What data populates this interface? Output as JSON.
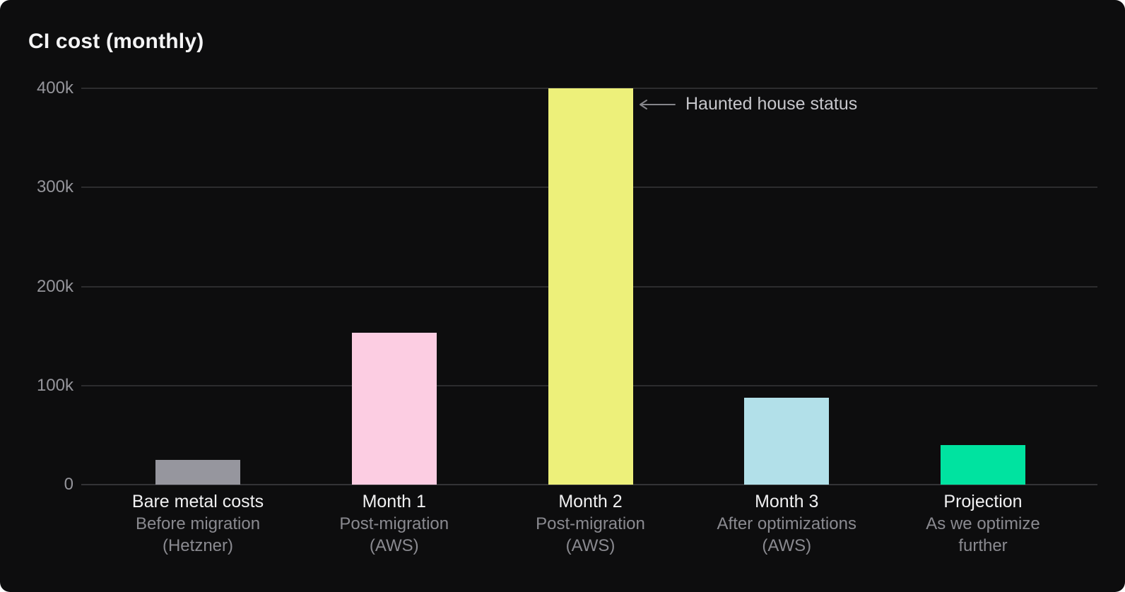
{
  "chart_data": {
    "type": "bar",
    "title": "CI cost (monthly)",
    "categories": [
      "Bare metal costs",
      "Month 1",
      "Month 2",
      "Month 3",
      "Projection"
    ],
    "category_sublabels": [
      [
        "Before migration",
        "(Hetzner)"
      ],
      [
        "Post-migration",
        "(AWS)"
      ],
      [
        "Post-migration",
        "(AWS)"
      ],
      [
        "After optimizations",
        "(AWS)"
      ],
      [
        "As we optimize",
        "further"
      ]
    ],
    "values": [
      25000,
      153000,
      400000,
      88000,
      40000
    ],
    "bar_colors": [
      "#96969e",
      "#fccde2",
      "#edf07a",
      "#b2e0e9",
      "#00e3a0"
    ],
    "xlabel": "",
    "ylabel": "",
    "ylim": [
      0,
      400000
    ],
    "yticks": {
      "values": [
        0,
        100000,
        200000,
        300000,
        400000
      ],
      "labels": [
        "0",
        "100k",
        "200k",
        "300k",
        "400k"
      ]
    },
    "grid": "horizontal",
    "legend": "none",
    "annotations": [
      {
        "text": "Haunted house status",
        "target_category": "Month 2",
        "arrow": "left"
      }
    ]
  },
  "colors": {
    "background": "#0d0d0e",
    "title_text": "#f4f4f5",
    "grid": "#2c2c2e",
    "axis_tick_text": "#95959b",
    "category_primary_text": "#f0f0f1",
    "category_secondary_text": "#8a8a90",
    "annotation_text": "#c6c6cb",
    "annotation_arrow": "#85858a"
  }
}
